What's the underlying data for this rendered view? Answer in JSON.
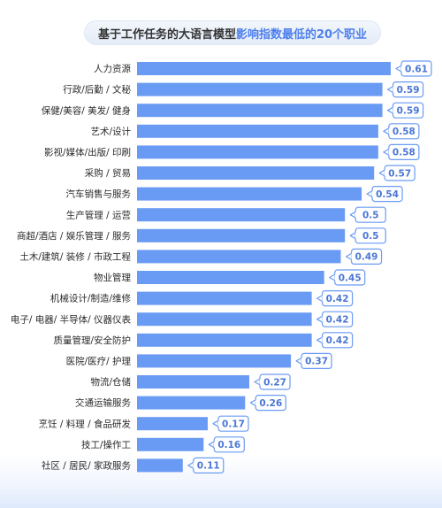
{
  "title": {
    "plain": "基于工作任务的大语言模型",
    "highlight": "影响指数最低的20个职业"
  },
  "colors": {
    "bar": "#6a9bf4",
    "value_text": "#4a76d4",
    "callout_border": "#6a9bf4",
    "title_highlight": "#4e80ec"
  },
  "chart_data": {
    "type": "bar",
    "orientation": "horizontal",
    "categories": [
      "人力资源",
      "行政/后勤 / 文秘",
      "保健/美容/ 美发/ 健身",
      "艺术/设计",
      "影视/媒体/出版/ 印刷",
      "采购 / 贸易",
      "汽车销售与服务",
      "生产管理 / 运营",
      "商超/酒店 / 娱乐管理 / 服务",
      "土木/建筑/ 装修 / 市政工程",
      "物业管理",
      "机械设计/制造/维修",
      "电子/ 电器/ 半导体/ 仪器仪表",
      "质量管理/安全防护",
      "医院/医疗/ 护理",
      "物流/仓储",
      "交通运输服务",
      "烹饪 / 料理 / 食品研发",
      "技工/操作工",
      "社区 / 居民/ 家政服务"
    ],
    "values": [
      0.61,
      0.59,
      0.59,
      0.58,
      0.58,
      0.57,
      0.54,
      0.5,
      0.5,
      0.49,
      0.45,
      0.42,
      0.42,
      0.42,
      0.37,
      0.27,
      0.26,
      0.17,
      0.16,
      0.11
    ],
    "value_labels": [
      "0.61",
      "0.59",
      "0.59",
      "0.58",
      "0.58",
      "0.57",
      "0.54",
      "0.5",
      "0.5",
      "0.49",
      "0.45",
      "0.42",
      "0.42",
      "0.42",
      "0.37",
      "0.27",
      "0.26",
      "0.17",
      "0.16",
      "0.11"
    ],
    "xlim": [
      0,
      0.61
    ],
    "title": "基于工作任务的大语言模型影响指数最低的20个职业",
    "xlabel": "",
    "ylabel": "",
    "grid": false,
    "legend": "none"
  }
}
